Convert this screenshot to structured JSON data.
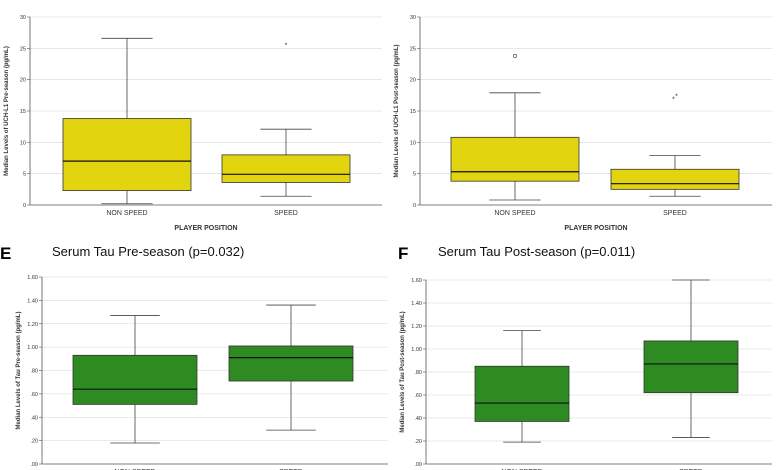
{
  "chart_data": [
    {
      "type": "box",
      "panel_letter": "",
      "title": "",
      "xlabel": "PLAYER POSITION",
      "ylabel": "Median Levels of UCH-L1 Pre-season (pg/mL)",
      "ylim": [
        0,
        30
      ],
      "yticks": [
        0,
        5,
        10,
        15,
        20,
        25,
        30
      ],
      "ytick_labels": [
        "0",
        "5",
        "10",
        "15",
        "20",
        "25",
        "30"
      ],
      "box_color": "#e2d40f",
      "grid": true,
      "categories": [
        "NON SPEED",
        "SPEED"
      ],
      "boxes": [
        {
          "min": 0.2,
          "q1": 2.3,
          "median": 7.0,
          "q3": 13.8,
          "max": 26.6,
          "outliers": []
        },
        {
          "min": 1.4,
          "q1": 3.6,
          "median": 4.9,
          "q3": 8.0,
          "max": 12.1,
          "outliers": [
            {
              "value": 25.6,
              "marker": "*"
            }
          ]
        }
      ]
    },
    {
      "type": "box",
      "panel_letter": "",
      "title": "",
      "xlabel": "PLAYER POSITION",
      "ylabel": "Median Levels of UCH-L1 Post-season (pg/mL)",
      "ylim": [
        0,
        30
      ],
      "yticks": [
        0,
        5,
        10,
        15,
        20,
        25,
        30
      ],
      "ytick_labels": [
        "0",
        "5",
        "10",
        "15",
        "20",
        "25",
        "30"
      ],
      "box_color": "#e2d40f",
      "grid": true,
      "categories": [
        "NON SPEED",
        "SPEED"
      ],
      "boxes": [
        {
          "min": 0.8,
          "q1": 3.8,
          "median": 5.3,
          "q3": 10.8,
          "max": 17.9,
          "outliers": [
            {
              "value": 23.8,
              "marker": "o"
            }
          ]
        },
        {
          "min": 1.4,
          "q1": 2.5,
          "median": 3.4,
          "q3": 5.7,
          "max": 7.9,
          "outliers": [
            {
              "value": 17.0,
              "marker": "*"
            },
            {
              "value": 17.5,
              "marker": "*"
            }
          ]
        }
      ]
    },
    {
      "type": "box",
      "panel_letter": "E",
      "title": "Serum Tau Pre-season (p=0.032)",
      "xlabel": "",
      "ylabel": "Median Levels of Tau Pre-season (pg/mL)",
      "ylim": [
        0,
        1.6
      ],
      "yticks": [
        0,
        0.2,
        0.4,
        0.6,
        0.8,
        1.0,
        1.2,
        1.4,
        1.6
      ],
      "ytick_labels": [
        ".00",
        ".20",
        ".40",
        ".60",
        ".80",
        "1.00",
        "1.20",
        "1.40",
        "1.60"
      ],
      "box_color": "#2e8b22",
      "grid": true,
      "categories": [
        "NON SPEED",
        "SPEED"
      ],
      "boxes": [
        {
          "min": 0.18,
          "q1": 0.51,
          "median": 0.64,
          "q3": 0.93,
          "max": 1.27,
          "outliers": []
        },
        {
          "min": 0.29,
          "q1": 0.71,
          "median": 0.91,
          "q3": 1.01,
          "max": 1.36,
          "outliers": []
        }
      ]
    },
    {
      "type": "box",
      "panel_letter": "F",
      "title": "Serum Tau Post-season (p=0.011)",
      "xlabel": "",
      "ylabel": "Median Levels of Tau Post-season (pg/mL)",
      "ylim": [
        0,
        1.6
      ],
      "yticks": [
        0,
        0.2,
        0.4,
        0.6,
        0.8,
        1.0,
        1.2,
        1.4,
        1.6
      ],
      "ytick_labels": [
        ".00",
        ".20",
        ".40",
        ".60",
        ".80",
        "1.00",
        "1.20",
        "1.40",
        "1.60"
      ],
      "box_color": "#2e8b22",
      "grid": true,
      "categories": [
        "NON SPEED",
        "SPEED"
      ],
      "boxes": [
        {
          "min": 0.19,
          "q1": 0.37,
          "median": 0.53,
          "q3": 0.85,
          "max": 1.16,
          "outliers": []
        },
        {
          "min": 0.23,
          "q1": 0.62,
          "median": 0.87,
          "q3": 1.07,
          "max": 1.6,
          "outliers": []
        }
      ]
    }
  ]
}
